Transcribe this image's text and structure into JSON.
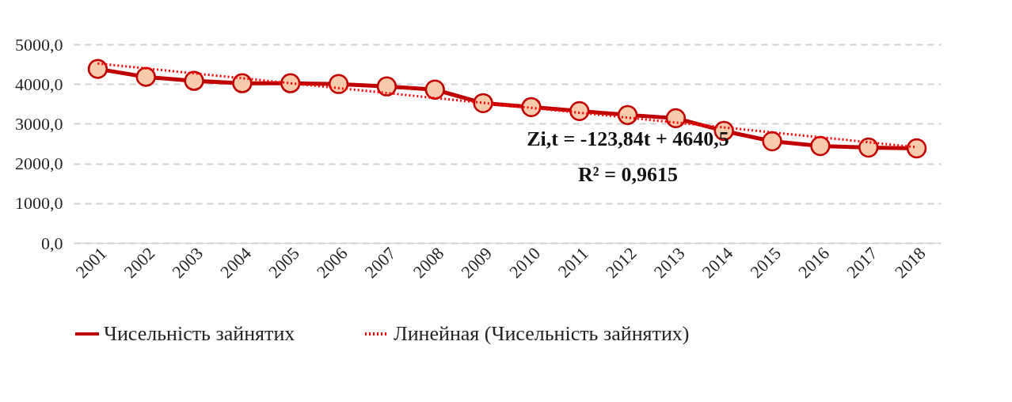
{
  "chart_data": {
    "type": "line",
    "categories": [
      "2001",
      "2002",
      "2003",
      "2004",
      "2005",
      "2006",
      "2007",
      "2008",
      "2009",
      "2010",
      "2011",
      "2012",
      "2013",
      "2014",
      "2015",
      "2016",
      "2017",
      "2018"
    ],
    "series": [
      {
        "name": "Чисельність зайнятих",
        "color": "#c00000",
        "marker": "circle",
        "line_style": "solid",
        "values": [
          4380,
          4180,
          4080,
          4020,
          4020,
          4000,
          3940,
          3860,
          3520,
          3420,
          3320,
          3220,
          3140,
          2820,
          2560,
          2440,
          2400,
          2380
        ]
      },
      {
        "name": "Линейная (Чисельність зайнятих)",
        "color": "#ff0000",
        "marker": "none",
        "line_style": "dotted",
        "values": [
          4517,
          4393,
          4269,
          4145,
          4021,
          3897,
          3774,
          3650,
          3526,
          3402,
          3278,
          3154,
          3031,
          2907,
          2783,
          2659,
          2535,
          2411
        ]
      }
    ],
    "ylim": [
      0,
      5000
    ],
    "yticks": [
      {
        "value": 0,
        "label": "0,0"
      },
      {
        "value": 1000,
        "label": "1000,0"
      },
      {
        "value": 2000,
        "label": "2000,0"
      },
      {
        "value": 3000,
        "label": "3000,0"
      },
      {
        "value": 4000,
        "label": "4000,0"
      },
      {
        "value": 5000,
        "label": "5000,0"
      }
    ],
    "grid": "y",
    "legend": "bottom",
    "annotations": [
      "Zi,t  = -123,84t + 4640,5",
      "R² = 0,9615"
    ]
  }
}
